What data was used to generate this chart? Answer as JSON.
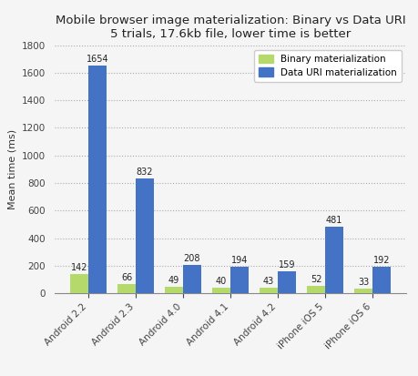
{
  "title_line1": "Mobile browser image materialization: Binary vs Data URI",
  "title_line2": "5 trials, 17.6kb file, lower time is better",
  "ylabel": "Mean time (ms)",
  "categories": [
    "Android 2.2",
    "Android 2.3",
    "Android 4.0",
    "Android 4.1",
    "Android 4.2",
    "iPhone iOS 5",
    "iPhone iOS 6"
  ],
  "binary_values": [
    142,
    66,
    49,
    40,
    43,
    52,
    33
  ],
  "datauri_values": [
    1654,
    832,
    208,
    194,
    159,
    481,
    192
  ],
  "binary_color": "#b5d96b",
  "datauri_color": "#4472c4",
  "ylim": [
    0,
    1800
  ],
  "yticks": [
    0,
    200,
    400,
    600,
    800,
    1000,
    1200,
    1400,
    1600,
    1800
  ],
  "legend_binary": "Binary materialization",
  "legend_datauri": "Data URI materialization",
  "bg_color": "#f5f5f5",
  "plot_bg_color": "#f5f5f5",
  "grid_color": "#aaaaaa",
  "bar_width": 0.38,
  "title_fontsize": 9.5,
  "label_fontsize": 8,
  "tick_fontsize": 7.5,
  "value_fontsize": 7
}
